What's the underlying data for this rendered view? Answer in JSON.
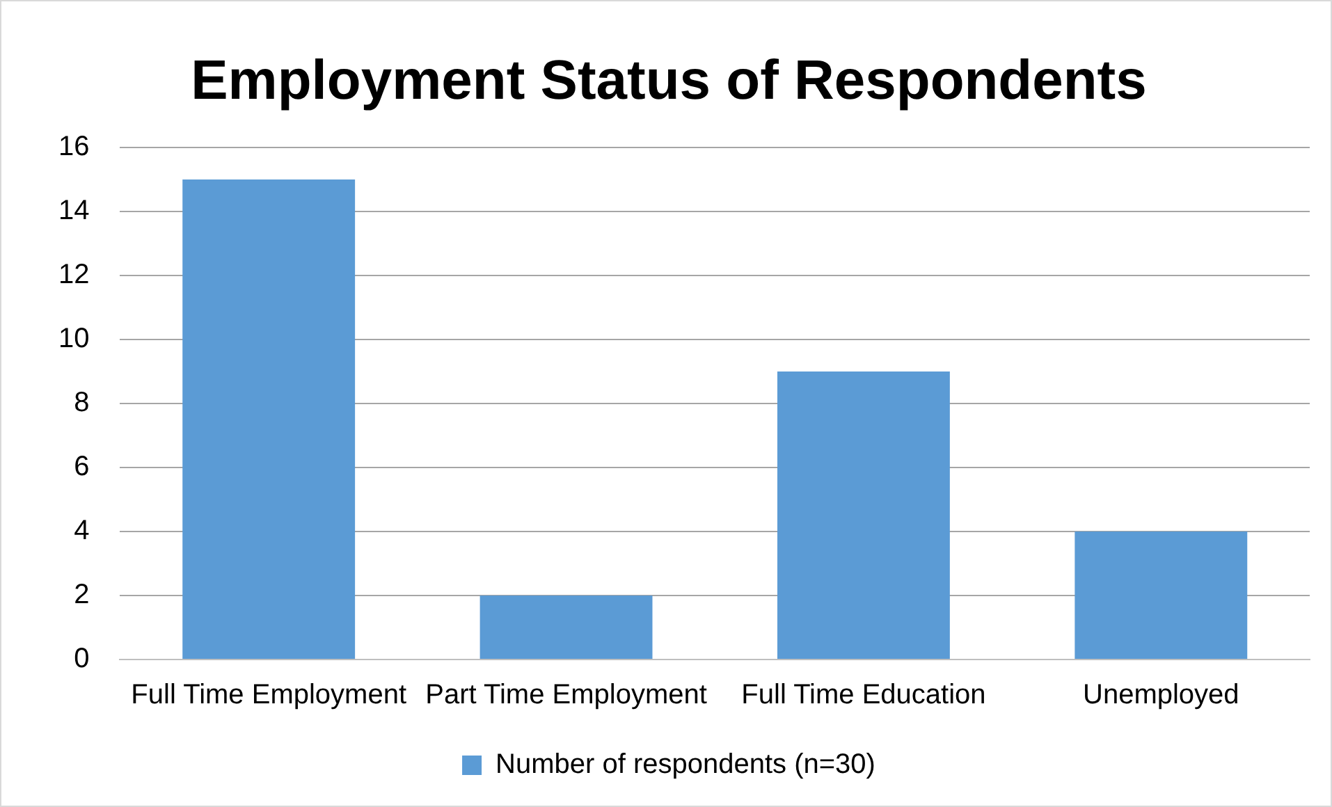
{
  "chart_data": {
    "type": "bar",
    "title": "Employment Status of Respondents",
    "categories": [
      "Full Time Employment",
      "Part Time Employment",
      "Full Time Education",
      "Unemployed"
    ],
    "series": [
      {
        "name": "Number of respondents (n=30)",
        "color": "#5b9bd5",
        "values": [
          15,
          2,
          9,
          4
        ]
      }
    ],
    "ylim": [
      0,
      16
    ],
    "yticks": [
      0,
      2,
      4,
      6,
      8,
      10,
      12,
      14,
      16
    ],
    "grid": "y",
    "legend": "bottom"
  }
}
